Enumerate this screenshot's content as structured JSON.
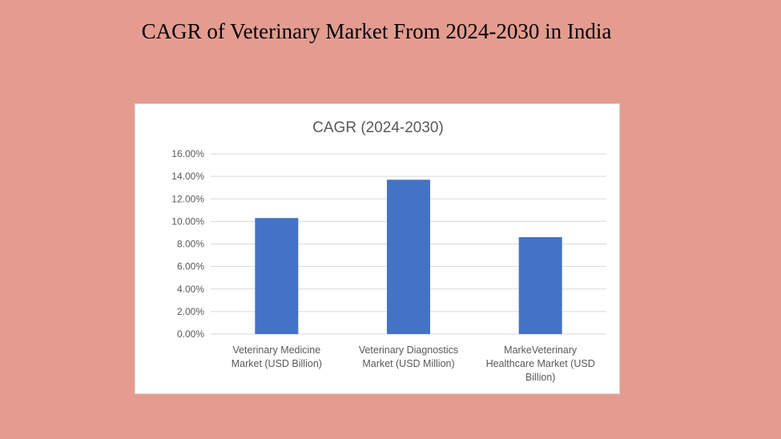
{
  "slide": {
    "title": "CAGR of Veterinary Market From 2024-2030 in India",
    "background": "#e49c90"
  },
  "chart_data": {
    "type": "bar",
    "title": "CAGR (2024-2030)",
    "xlabel": "",
    "ylabel": "",
    "categories": [
      [
        "Veterinary Medicine",
        "Market (USD Billion)"
      ],
      [
        "Veterinary Diagnostics",
        "Market (USD Million)"
      ],
      [
        "MarkeVeterinary",
        "Healthcare Market (USD",
        "Billion)"
      ]
    ],
    "values": [
      10.3,
      13.7,
      8.6
    ],
    "ylim": [
      0,
      16
    ],
    "yticks": [
      "0.00%",
      "2.00%",
      "4.00%",
      "6.00%",
      "8.00%",
      "10.00%",
      "12.00%",
      "14.00%",
      "16.00%"
    ],
    "grid": true,
    "legend": "none",
    "bar_color": "#4472c4"
  }
}
